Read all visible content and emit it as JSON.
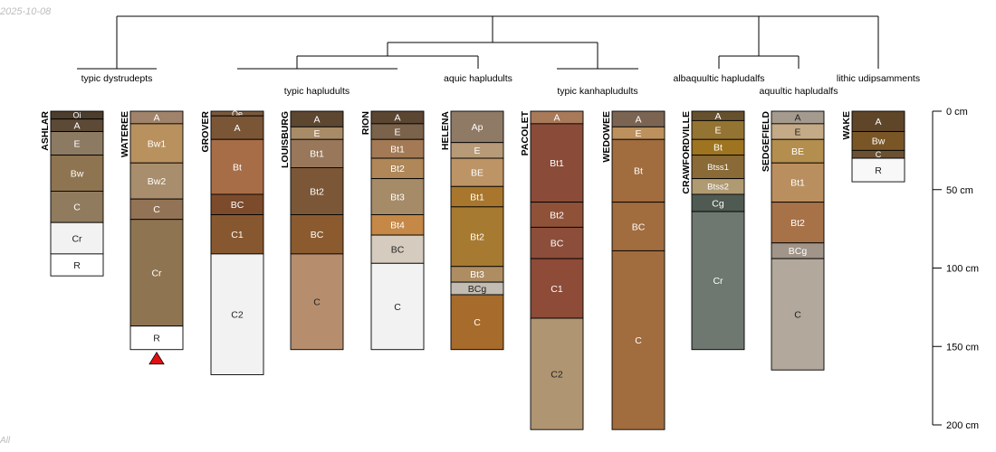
{
  "watermark": {
    "date": "2025-10-08",
    "corner": "All"
  },
  "axis": {
    "ticks": [
      {
        "depth": 0,
        "label": "0 cm"
      },
      {
        "depth": 50,
        "label": "50 cm"
      },
      {
        "depth": 100,
        "label": "100 cm"
      },
      {
        "depth": 150,
        "label": "150 cm"
      },
      {
        "depth": 200,
        "label": "200 cm"
      }
    ]
  },
  "taxa": [
    {
      "id": "dys",
      "label": "typic dystrudepts"
    },
    {
      "id": "hap",
      "label": "typic hapludults"
    },
    {
      "id": "aqu",
      "label": "aquic hapludults"
    },
    {
      "id": "kan",
      "label": "typic kanhapludults"
    },
    {
      "id": "alb",
      "label": "albaquultic hapludalfs"
    },
    {
      "id": "aqa",
      "label": "aquultic hapludalfs"
    },
    {
      "id": "lit",
      "label": "lithic udipsamments"
    }
  ],
  "profiles": [
    {
      "name": "ASHLAR",
      "taxon": "dys",
      "horizons": [
        {
          "name": "Oi",
          "top": 0,
          "bottom": 5,
          "color": "#4d3d2c"
        },
        {
          "name": "A",
          "top": 5,
          "bottom": 13,
          "color": "#5c4a37"
        },
        {
          "name": "E",
          "top": 13,
          "bottom": 28,
          "color": "#8d7a62"
        },
        {
          "name": "Bw",
          "top": 28,
          "bottom": 51,
          "color": "#8e7450"
        },
        {
          "name": "C",
          "top": 51,
          "bottom": 71,
          "color": "#917b5e"
        },
        {
          "name": "Cr",
          "top": 71,
          "bottom": 91,
          "color": "#f2f2f2"
        },
        {
          "name": "R",
          "top": 91,
          "bottom": 105,
          "color": "#ffffff"
        }
      ]
    },
    {
      "name": "WATEREE",
      "taxon": "dys",
      "marker": true,
      "horizons": [
        {
          "name": "A",
          "top": 0,
          "bottom": 8,
          "color": "#a0836a"
        },
        {
          "name": "Bw1",
          "top": 8,
          "bottom": 33,
          "color": "#b8915f"
        },
        {
          "name": "Bw2",
          "top": 33,
          "bottom": 56,
          "color": "#a88e6c"
        },
        {
          "name": "C",
          "top": 56,
          "bottom": 69,
          "color": "#937355"
        },
        {
          "name": "Cr",
          "top": 69,
          "bottom": 137,
          "color": "#8f7451"
        },
        {
          "name": "R",
          "top": 137,
          "bottom": 152,
          "color": "#ffffff"
        }
      ]
    },
    {
      "name": "GROVER",
      "taxon": "hap",
      "horizons": [
        {
          "name": "Oe",
          "top": 0,
          "bottom": 3,
          "color": "#7a5a3c"
        },
        {
          "name": "A",
          "top": 3,
          "bottom": 18,
          "color": "#7a5636"
        },
        {
          "name": "Bt",
          "top": 18,
          "bottom": 53,
          "color": "#a76d47"
        },
        {
          "name": "BC",
          "top": 53,
          "bottom": 66,
          "color": "#7b4b2c"
        },
        {
          "name": "C1",
          "top": 66,
          "bottom": 91,
          "color": "#87582f"
        },
        {
          "name": "C2",
          "top": 91,
          "bottom": 168,
          "color": "#f2f2f2"
        }
      ]
    },
    {
      "name": "LOUISBURG",
      "taxon": "hap",
      "horizons": [
        {
          "name": "A",
          "top": 0,
          "bottom": 10,
          "color": "#5e4731"
        },
        {
          "name": "E",
          "top": 10,
          "bottom": 18,
          "color": "#a88c68"
        },
        {
          "name": "Bt1",
          "top": 18,
          "bottom": 36,
          "color": "#99775a"
        },
        {
          "name": "Bt2",
          "top": 36,
          "bottom": 66,
          "color": "#7b5737"
        },
        {
          "name": "BC",
          "top": 66,
          "bottom": 91,
          "color": "#8b5b2f"
        },
        {
          "name": "C",
          "top": 91,
          "bottom": 152,
          "color": "#b68e6e"
        }
      ]
    },
    {
      "name": "RION",
      "taxon": "hap",
      "horizons": [
        {
          "name": "A",
          "top": 0,
          "bottom": 8,
          "color": "#5b4632"
        },
        {
          "name": "E",
          "top": 8,
          "bottom": 18,
          "color": "#7b624a"
        },
        {
          "name": "Bt1",
          "top": 18,
          "bottom": 30,
          "color": "#a37a55"
        },
        {
          "name": "Bt2",
          "top": 30,
          "bottom": 43,
          "color": "#b08758"
        },
        {
          "name": "Bt3",
          "top": 43,
          "bottom": 66,
          "color": "#a68b68"
        },
        {
          "name": "Bt4",
          "top": 66,
          "bottom": 79,
          "color": "#c58846"
        },
        {
          "name": "BC",
          "top": 79,
          "bottom": 97,
          "color": "#d5ccbf"
        },
        {
          "name": "C",
          "top": 97,
          "bottom": 152,
          "color": "#f2f2f2"
        }
      ]
    },
    {
      "name": "HELENA",
      "taxon": "aqu",
      "horizons": [
        {
          "name": "Ap",
          "top": 0,
          "bottom": 20,
          "color": "#8f7a66"
        },
        {
          "name": "E",
          "top": 20,
          "bottom": 30,
          "color": "#b79a78"
        },
        {
          "name": "BE",
          "top": 30,
          "bottom": 48,
          "color": "#bc9466"
        },
        {
          "name": "Bt1",
          "top": 48,
          "bottom": 61,
          "color": "#a8762c"
        },
        {
          "name": "Bt2",
          "top": 61,
          "bottom": 99,
          "color": "#a77a31"
        },
        {
          "name": "Bt3",
          "top": 99,
          "bottom": 109,
          "color": "#ae8d63"
        },
        {
          "name": "BCg",
          "top": 109,
          "bottom": 117,
          "color": "#c3bcb2"
        },
        {
          "name": "C",
          "top": 117,
          "bottom": 152,
          "color": "#a76b2b"
        }
      ]
    },
    {
      "name": "PACOLET",
      "taxon": "kan",
      "horizons": [
        {
          "name": "A",
          "top": 0,
          "bottom": 8,
          "color": "#a87a5a"
        },
        {
          "name": "Bt1",
          "top": 8,
          "bottom": 58,
          "color": "#8a4c39"
        },
        {
          "name": "Bt2",
          "top": 58,
          "bottom": 74,
          "color": "#8f5239"
        },
        {
          "name": "BC",
          "top": 74,
          "bottom": 94,
          "color": "#8c4e3a"
        },
        {
          "name": "C1",
          "top": 94,
          "bottom": 132,
          "color": "#8d4b38"
        },
        {
          "name": "C2",
          "top": 132,
          "bottom": 203,
          "color": "#b09572"
        }
      ]
    },
    {
      "name": "WEDOWEE",
      "taxon": "kan",
      "horizons": [
        {
          "name": "A",
          "top": 0,
          "bottom": 10,
          "color": "#7b6452"
        },
        {
          "name": "E",
          "top": 10,
          "bottom": 18,
          "color": "#bd915d"
        },
        {
          "name": "Bt",
          "top": 18,
          "bottom": 58,
          "color": "#a16c3e"
        },
        {
          "name": "BC",
          "top": 58,
          "bottom": 89,
          "color": "#a16c3e"
        },
        {
          "name": "C",
          "top": 89,
          "bottom": 203,
          "color": "#a16c3e"
        }
      ]
    },
    {
      "name": "CRAWFORDVILLE",
      "taxon": "alb",
      "horizons": [
        {
          "name": "A",
          "top": 0,
          "bottom": 6,
          "color": "#66512f"
        },
        {
          "name": "E",
          "top": 6,
          "bottom": 18,
          "color": "#947432"
        },
        {
          "name": "Bt",
          "top": 18,
          "bottom": 28,
          "color": "#9e7420"
        },
        {
          "name": "Btss1",
          "top": 28,
          "bottom": 43,
          "color": "#8a6a36"
        },
        {
          "name": "Btss2",
          "top": 43,
          "bottom": 53,
          "color": "#b09a72"
        },
        {
          "name": "Cg",
          "top": 53,
          "bottom": 64,
          "color": "#4f5b52"
        },
        {
          "name": "Cr",
          "top": 64,
          "bottom": 152,
          "color": "#6e7770"
        }
      ]
    },
    {
      "name": "SEDGEFIELD",
      "taxon": "aqa",
      "horizons": [
        {
          "name": "A",
          "top": 0,
          "bottom": 8,
          "color": "#a59a8e"
        },
        {
          "name": "E",
          "top": 8,
          "bottom": 18,
          "color": "#c5aa87"
        },
        {
          "name": "BE",
          "top": 18,
          "bottom": 33,
          "color": "#b48e4e"
        },
        {
          "name": "Bt1",
          "top": 33,
          "bottom": 58,
          "color": "#ba8f5f"
        },
        {
          "name": "Bt2",
          "top": 58,
          "bottom": 84,
          "color": "#a87248"
        },
        {
          "name": "BCg",
          "top": 84,
          "bottom": 94,
          "color": "#a19488"
        },
        {
          "name": "C",
          "top": 94,
          "bottom": 165,
          "color": "#b2a89c"
        }
      ]
    },
    {
      "name": "WAKE",
      "taxon": "lit",
      "horizons": [
        {
          "name": "A",
          "top": 0,
          "bottom": 13,
          "color": "#5f4628"
        },
        {
          "name": "Bw",
          "top": 13,
          "bottom": 25,
          "color": "#7a5626"
        },
        {
          "name": "C",
          "top": 25,
          "bottom": 30,
          "color": "#6a5131"
        },
        {
          "name": "R",
          "top": 30,
          "bottom": 45,
          "color": "#f8f8f8"
        }
      ]
    }
  ]
}
